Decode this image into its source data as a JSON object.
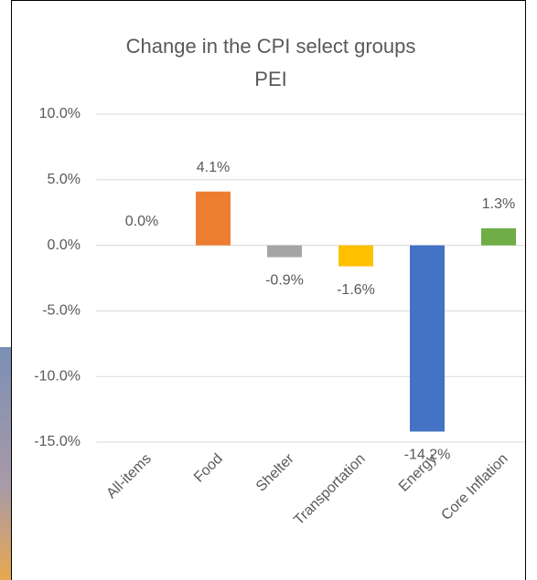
{
  "chart_data": {
    "type": "bar",
    "title": "Change in the CPI select groups",
    "subtitle": "PEI",
    "categories": [
      "All-items",
      "Food",
      "Shelter",
      "Transportation",
      "Energy",
      "Core Inflation"
    ],
    "values": [
      0.0,
      4.1,
      -0.9,
      -1.6,
      -14.2,
      1.3
    ],
    "value_labels": [
      "0.0%",
      "4.1%",
      "-0.9%",
      "-1.6%",
      "-14.2%",
      "1.3%"
    ],
    "colors": [
      "#4472c4",
      "#ed7d31",
      "#a5a5a5",
      "#ffc000",
      "#4472c4",
      "#70ad47"
    ],
    "ylim": [
      -15,
      10
    ],
    "yticks": [
      {
        "value": -15,
        "label": "-15.0%"
      },
      {
        "value": -10,
        "label": "-10.0%"
      },
      {
        "value": -5,
        "label": "-5.0%"
      },
      {
        "value": 0,
        "label": "0.0%"
      },
      {
        "value": 5,
        "label": "5.0%"
      },
      {
        "value": 10,
        "label": "10.0%"
      }
    ],
    "grid": true
  }
}
